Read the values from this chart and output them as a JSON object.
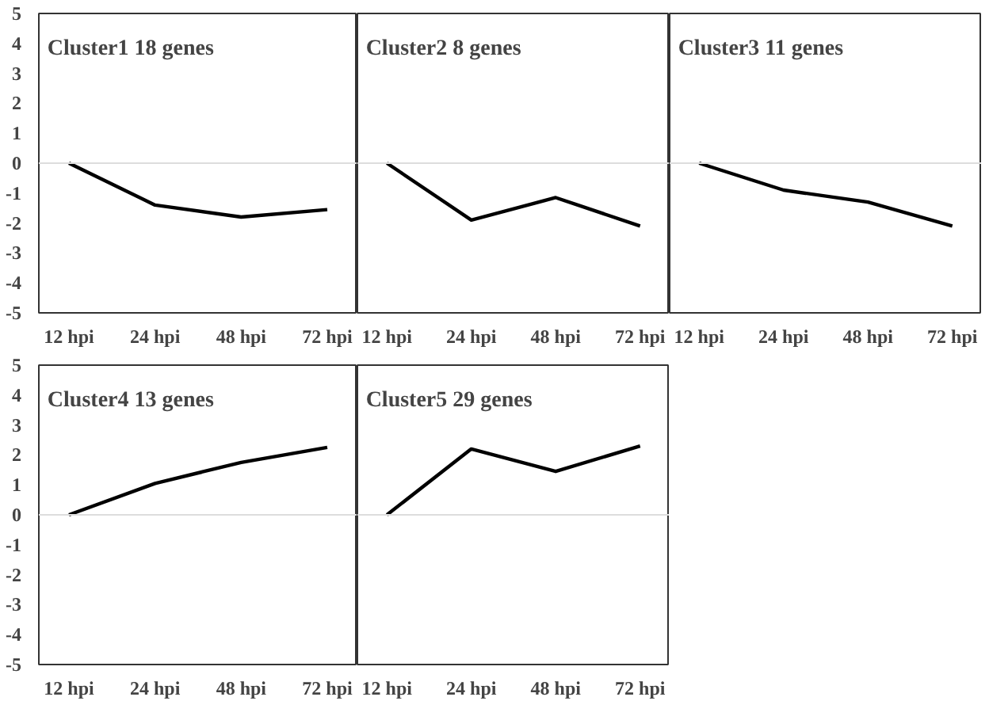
{
  "chart_data": [
    {
      "type": "line",
      "title": "Cluster1  18 genes",
      "categories": [
        "12 hpi",
        "24 hpi",
        "48 hpi",
        "72 hpi"
      ],
      "series": [
        {
          "color": "#000000",
          "values": [
            0,
            -1.4,
            -1.8,
            -1.55
          ]
        }
      ],
      "ylim": [
        -5,
        5
      ],
      "yticks": [
        -5,
        -4,
        -3,
        -2,
        -1,
        0,
        1,
        2,
        3,
        4,
        5
      ],
      "ref_lines": [
        {
          "axis": "y",
          "value": 0,
          "color": "#dddddd"
        }
      ]
    },
    {
      "type": "line",
      "title": "Cluster2  8 genes",
      "categories": [
        "12 hpi",
        "24 hpi",
        "48 hpi",
        "72 hpi"
      ],
      "series": [
        {
          "color": "#000000",
          "values": [
            0,
            -1.9,
            -1.15,
            -2.1
          ]
        }
      ],
      "ylim": [
        -5,
        5
      ],
      "yticks": [
        -5,
        -4,
        -3,
        -2,
        -1,
        0,
        1,
        2,
        3,
        4,
        5
      ],
      "tick_labels": "x",
      "ref_lines": [
        {
          "axis": "y",
          "value": 0,
          "color": "#dddddd"
        }
      ]
    },
    {
      "type": "line",
      "title": "Cluster3  11 genes",
      "categories": [
        "12 hpi",
        "24 hpi",
        "48 hpi",
        "72 hpi"
      ],
      "series": [
        {
          "color": "#000000",
          "values": [
            0,
            -0.9,
            -1.3,
            -2.1
          ]
        }
      ],
      "ylim": [
        -5,
        5
      ],
      "yticks": [
        -5,
        -4,
        -3,
        -2,
        -1,
        0,
        1,
        2,
        3,
        4,
        5
      ],
      "tick_labels": "x",
      "ref_lines": [
        {
          "axis": "y",
          "value": 0,
          "color": "#dddddd"
        }
      ]
    },
    {
      "type": "line",
      "title": "Cluster4  13 genes",
      "categories": [
        "12 hpi",
        "24 hpi",
        "48 hpi",
        "72 hpi"
      ],
      "series": [
        {
          "color": "#000000",
          "values": [
            0,
            1.05,
            1.75,
            2.25
          ]
        }
      ],
      "ylim": [
        -5,
        5
      ],
      "yticks": [
        -5,
        -4,
        -3,
        -2,
        -1,
        0,
        1,
        2,
        3,
        4,
        5
      ],
      "ref_lines": [
        {
          "axis": "y",
          "value": 0,
          "color": "#dddddd"
        }
      ]
    },
    {
      "type": "line",
      "title": "Cluster5  29 genes",
      "categories": [
        "12 hpi",
        "24 hpi",
        "48 hpi",
        "72 hpi"
      ],
      "series": [
        {
          "color": "#000000",
          "values": [
            0,
            2.2,
            1.45,
            2.3
          ]
        }
      ],
      "ylim": [
        -5,
        5
      ],
      "yticks": [
        -5,
        -4,
        -3,
        -2,
        -1,
        0,
        1,
        2,
        3,
        4,
        5
      ],
      "tick_labels": "x",
      "ref_lines": [
        {
          "axis": "y",
          "value": 0,
          "color": "#dddddd"
        }
      ]
    }
  ]
}
